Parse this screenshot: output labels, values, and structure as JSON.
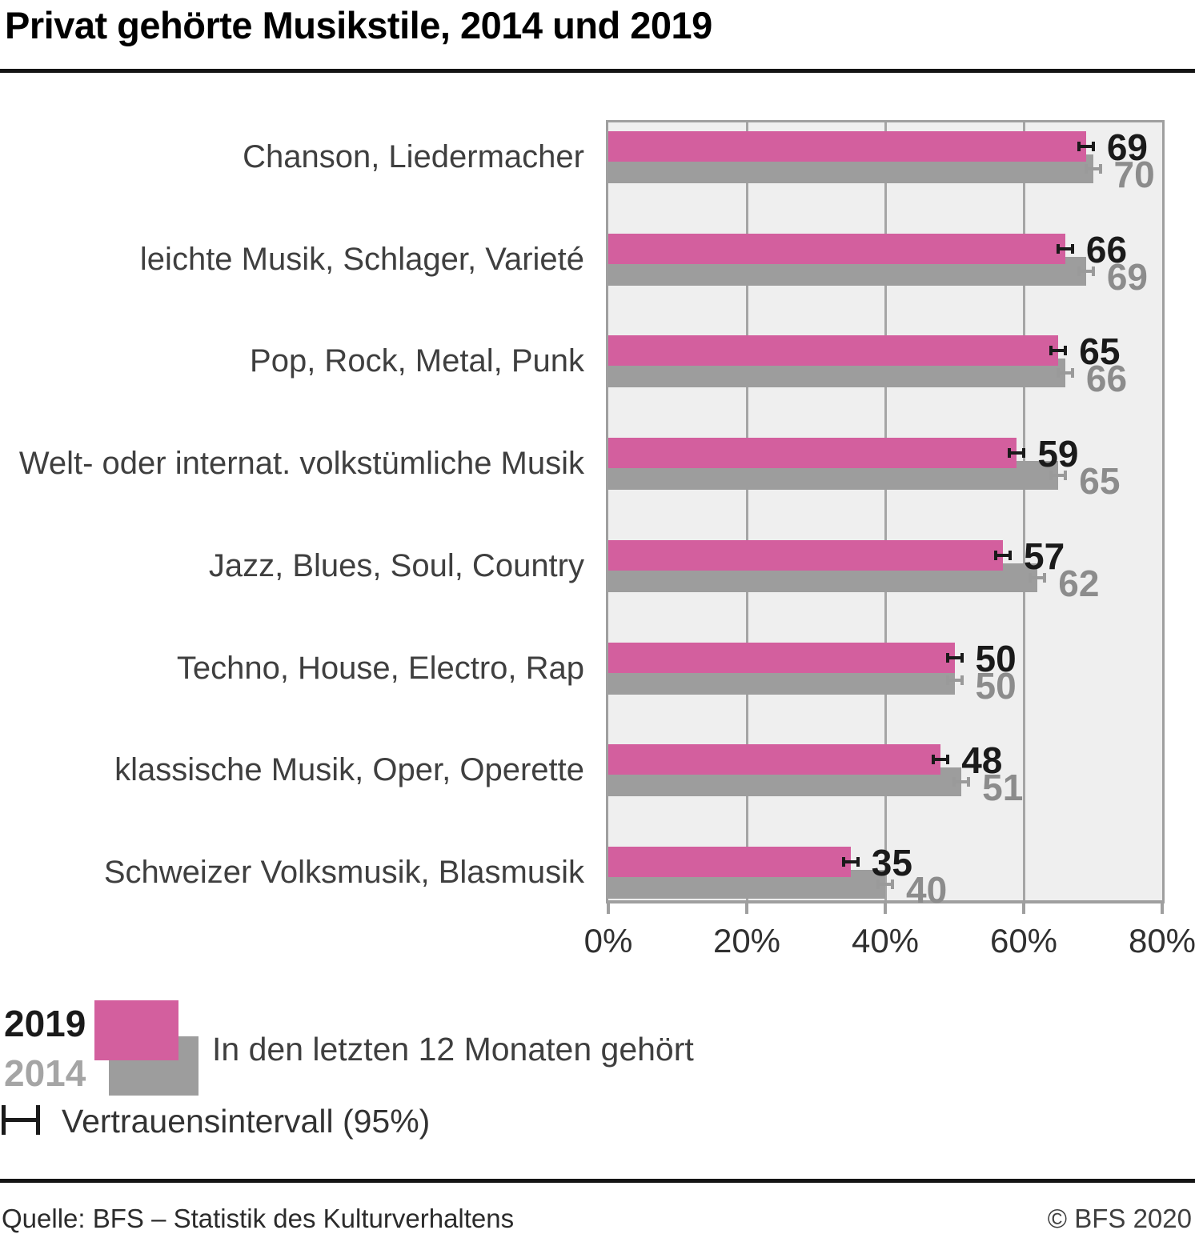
{
  "header": {
    "title": "Privat gehörte Musikstile, 2014 und 2019"
  },
  "chart_data": {
    "type": "bar",
    "orientation": "horizontal",
    "title": "Privat gehörte Musikstile, 2014 und 2019",
    "categories": [
      "Chanson, Liedermacher",
      "leichte Musik, Schlager, Varieté",
      "Pop, Rock, Metal, Punk",
      "Welt- oder internat. volkstümliche Musik",
      "Jazz, Blues, Soul, Country",
      "Techno, House, Electro, Rap",
      "klassische Musik, Oper, Operette",
      "Schweizer Volksmusik, Blasmusik"
    ],
    "series": [
      {
        "name": "2019",
        "color": "#d35f9e",
        "values": [
          69,
          66,
          65,
          59,
          57,
          50,
          48,
          35
        ]
      },
      {
        "name": "2014",
        "color": "#9d9d9d",
        "values": [
          70,
          69,
          66,
          65,
          62,
          50,
          51,
          40
        ]
      }
    ],
    "xlim": [
      0,
      80
    ],
    "x_ticks": [
      {
        "value": 0,
        "label": "0%"
      },
      {
        "value": 20,
        "label": "20%"
      },
      {
        "value": 40,
        "label": "40%"
      },
      {
        "value": 60,
        "label": "60%"
      },
      {
        "value": 80,
        "label": "80%"
      }
    ],
    "grid": "vertical",
    "legend_position": "bottom-left",
    "error_bars": {
      "show": true,
      "halfwidth_pct": 1.3,
      "label": "Vertrauensintervall (95%)"
    }
  },
  "legend": {
    "year_2019": "2019",
    "year_2014": "2014",
    "key_text": "In den letzten 12 Monaten gehört",
    "ci_text": "Vertrauensintervall (95%)"
  },
  "footer": {
    "source": "Quelle: BFS – Statistik des Kulturverhaltens",
    "copyright": "© BFS 2020"
  },
  "colors": {
    "accent_2019": "#d35f9e",
    "accent_2014": "#9d9d9d",
    "value_2019": "#1a1a1a",
    "value_2014": "#8c8c8c",
    "eb_2019": "#1a1a1a",
    "eb_2014": "#9a9a9a",
    "plot_bg": "#efefef",
    "grid": "#a5a5a5"
  }
}
